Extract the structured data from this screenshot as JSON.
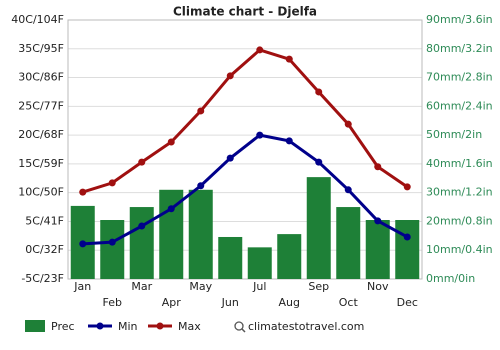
{
  "chart_data": {
    "type": "combo",
    "title": "Climate chart - Djelfa",
    "categories": [
      "Jan",
      "Feb",
      "Mar",
      "Apr",
      "May",
      "Jun",
      "Jul",
      "Aug",
      "Sep",
      "Oct",
      "Nov",
      "Dec"
    ],
    "series": [
      {
        "name": "Prec",
        "type": "bar",
        "axis": "y2",
        "color": "#1e8037",
        "values": [
          25.4,
          20.5,
          25,
          31,
          31,
          14.6,
          11,
          15.6,
          35.4,
          25,
          20.5,
          20.5
        ]
      },
      {
        "name": "Min",
        "type": "line",
        "color": "#00008b",
        "values": [
          1.1,
          1.4,
          4.2,
          7.2,
          11.2,
          16.0,
          20.0,
          19.0,
          15.3,
          10.5,
          5.1,
          2.3
        ]
      },
      {
        "name": "Max",
        "type": "line",
        "color": "#a01010",
        "values": [
          10.1,
          11.7,
          15.3,
          18.8,
          24.2,
          30.3,
          34.8,
          33.2,
          27.5,
          21.9,
          14.5,
          11.0
        ]
      }
    ],
    "ylim": [
      -5,
      40
    ],
    "yticks": [
      {
        "value": -5,
        "label": "-5C/23F"
      },
      {
        "value": 0,
        "label": "0C/32F"
      },
      {
        "value": 5,
        "label": "5C/41F"
      },
      {
        "value": 10,
        "label": "10C/50F"
      },
      {
        "value": 15,
        "label": "15C/59F"
      },
      {
        "value": 20,
        "label": "20C/68F"
      },
      {
        "value": 25,
        "label": "25C/77F"
      },
      {
        "value": 30,
        "label": "30C/86F"
      },
      {
        "value": 35,
        "label": "35C/95F"
      },
      {
        "value": 40,
        "label": "40C/104F"
      }
    ],
    "y2lim": [
      0,
      90
    ],
    "y2ticks": [
      {
        "value": 0,
        "label": "0mm/0in"
      },
      {
        "value": 10,
        "label": "10mm/0.4in"
      },
      {
        "value": 20,
        "label": "20mm/0.8in"
      },
      {
        "value": 30,
        "label": "30mm/1.2in"
      },
      {
        "value": 40,
        "label": "40mm/1.6in"
      },
      {
        "value": 50,
        "label": "50mm/2in"
      },
      {
        "value": 60,
        "label": "60mm/2.4in"
      },
      {
        "value": 70,
        "label": "70mm/2.8in"
      },
      {
        "value": 80,
        "label": "80mm/3.2in"
      },
      {
        "value": 90,
        "label": "90mm/3.6in"
      }
    ],
    "grid": true,
    "source": "climatestotravel.com"
  }
}
